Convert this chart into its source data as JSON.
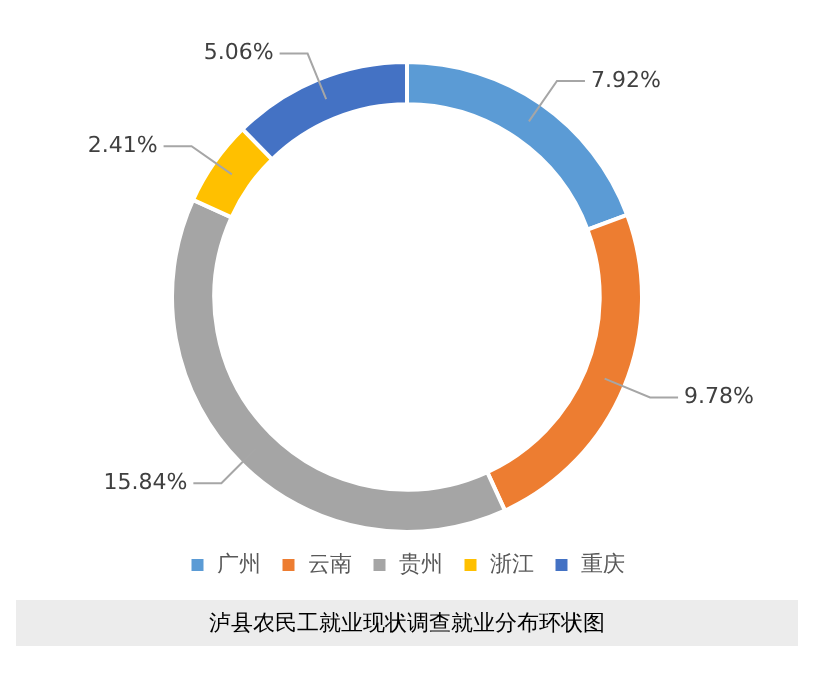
{
  "chart_data": {
    "type": "donut",
    "title": "泸县农民工就业现状调查就业分布环状图",
    "categories": [
      "广州",
      "云南",
      "贵州",
      "浙江",
      "重庆"
    ],
    "values": [
      7.92,
      9.78,
      15.84,
      2.41,
      5.06
    ],
    "colors": [
      "#5b9bd5",
      "#ed7d31",
      "#a5a5a5",
      "#ffc000",
      "#4472c4"
    ],
    "value_labels": [
      "7.92%",
      "9.78%",
      "15.84%",
      "2.41%",
      "5.06%"
    ],
    "legend": "bottom"
  }
}
